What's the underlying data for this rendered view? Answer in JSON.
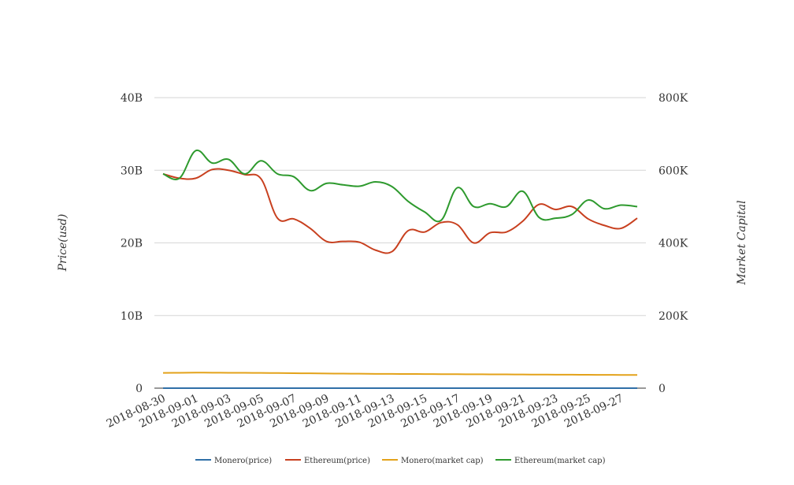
{
  "chart_data": {
    "type": "line",
    "title": "",
    "x": [
      "2018-08-30",
      "2018-08-31",
      "2018-09-01",
      "2018-09-02",
      "2018-09-03",
      "2018-09-04",
      "2018-09-05",
      "2018-09-06",
      "2018-09-07",
      "2018-09-08",
      "2018-09-09",
      "2018-09-10",
      "2018-09-11",
      "2018-09-12",
      "2018-09-13",
      "2018-09-14",
      "2018-09-15",
      "2018-09-16",
      "2018-09-17",
      "2018-09-18",
      "2018-09-19",
      "2018-09-20",
      "2018-09-21",
      "2018-09-22",
      "2018-09-23",
      "2018-09-24",
      "2018-09-25",
      "2018-09-26",
      "2018-09-27",
      "2018-09-28"
    ],
    "x_tick_labels": [
      "2018-08-30",
      "2018-09-01",
      "2018-09-03",
      "2018-09-05",
      "2018-09-07",
      "2018-09-09",
      "2018-09-11",
      "2018-09-13",
      "2018-09-15",
      "2018-09-17",
      "2018-09-19",
      "2018-09-21",
      "2018-09-23",
      "2018-09-25",
      "2018-09-27"
    ],
    "y_left": {
      "label": "Price(usd)",
      "ylim": [
        0,
        40000000000
      ],
      "ticks": [
        0,
        10000000000,
        20000000000,
        30000000000,
        40000000000
      ],
      "tick_labels": [
        "0",
        "10B",
        "20B",
        "30B",
        "40B"
      ]
    },
    "y_right": {
      "label": "Market Capital",
      "ylim": [
        0,
        800000
      ],
      "ticks": [
        0,
        200000,
        400000,
        600000,
        800000
      ],
      "tick_labels": [
        "0",
        "200K",
        "400K",
        "600K",
        "800K"
      ]
    },
    "grid": true,
    "legend_position": "bottom",
    "series": [
      {
        "name": "Monero(price)",
        "axis": "left",
        "color": "#2f6fa7",
        "values": [
          130,
          131,
          133,
          132,
          131,
          130,
          129,
          128,
          127,
          126,
          125,
          124,
          123,
          122,
          121,
          120,
          119,
          118,
          117,
          116,
          115,
          114,
          113,
          112,
          111,
          110,
          109,
          108,
          107,
          106
        ]
      },
      {
        "name": "Ethereum(price)",
        "axis": "left",
        "color": "#c8401f",
        "values": [
          29500000000,
          28900000000,
          28900000000,
          30100000000,
          30000000000,
          29400000000,
          28800000000,
          23400000000,
          23300000000,
          22000000000,
          20200000000,
          20200000000,
          20100000000,
          19000000000,
          18800000000,
          21700000000,
          21500000000,
          22800000000,
          22500000000,
          20000000000,
          21400000000,
          21500000000,
          23000000000,
          25300000000,
          24600000000,
          25000000000,
          23300000000,
          22400000000,
          22000000000,
          23400000000
        ]
      },
      {
        "name": "Monero(market cap)",
        "axis": "left",
        "color": "#e3a21a",
        "values": [
          2100000000,
          2120000000,
          2140000000,
          2130000000,
          2120000000,
          2110000000,
          2100000000,
          2080000000,
          2060000000,
          2040000000,
          2020000000,
          2000000000,
          1990000000,
          1970000000,
          1960000000,
          1950000000,
          1940000000,
          1930000000,
          1920000000,
          1910000000,
          1900000000,
          1890000000,
          1880000000,
          1870000000,
          1860000000,
          1850000000,
          1840000000,
          1830000000,
          1820000000,
          1810000000
        ]
      },
      {
        "name": "Ethereum(market cap)",
        "axis": "right",
        "color": "#2e9a2e",
        "values": [
          590000,
          578000,
          654000,
          620000,
          630000,
          590000,
          626000,
          590000,
          582000,
          544000,
          564000,
          560000,
          556000,
          568000,
          555000,
          514000,
          485000,
          462000,
          552000,
          500000,
          508000,
          500000,
          542000,
          470000,
          468000,
          478000,
          518000,
          494000,
          504000,
          500000
        ]
      }
    ]
  }
}
